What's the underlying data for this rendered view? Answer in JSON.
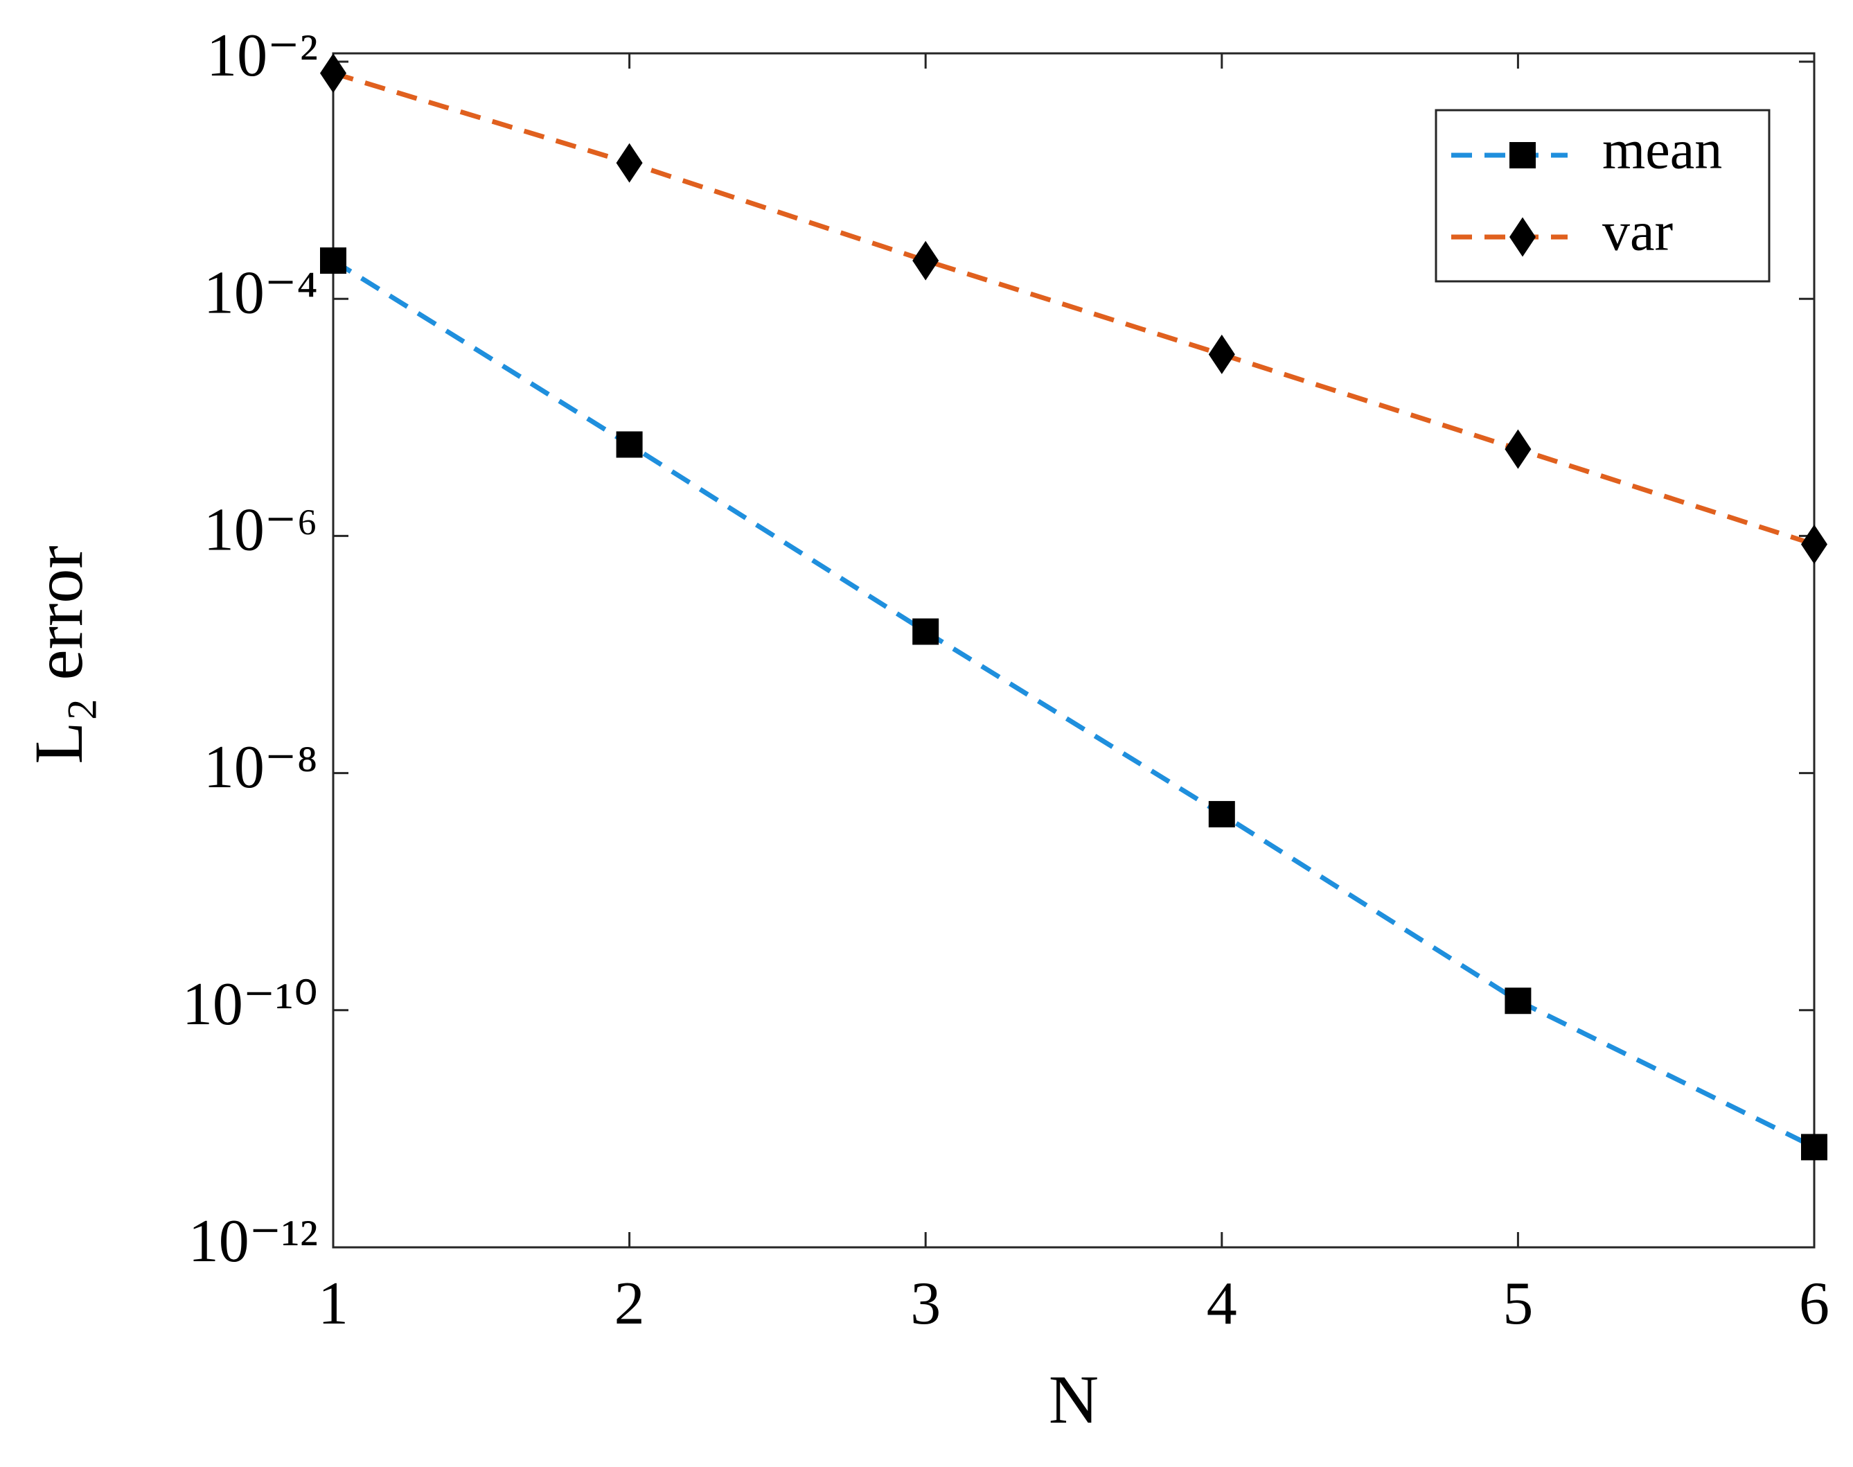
{
  "chart_data": {
    "type": "line",
    "x_label": "N",
    "y_label": "L₂ error",
    "x": [
      1,
      2,
      3,
      4,
      5,
      6
    ],
    "series": [
      {
        "name": "mean",
        "color": "#1F8FDD",
        "marker": "square",
        "values": [
          0.00021,
          5.9e-06,
          1.56e-07,
          4.5e-09,
          1.2e-10,
          7e-12
        ]
      },
      {
        "name": "var",
        "color": "#E0601E",
        "marker": "diamond",
        "values": [
          0.008,
          0.0014,
          0.00021,
          3.4e-05,
          5.4e-06,
          8.5e-07
        ]
      }
    ],
    "xlim": [
      1,
      6
    ],
    "xticks": [
      1,
      2,
      3,
      4,
      5,
      6
    ],
    "ylim": [
      1e-12,
      0.01
    ],
    "yticks": [
      {
        "value": 1e-12,
        "label": "10⁻¹²"
      },
      {
        "value": 1e-10,
        "label": "10⁻¹⁰"
      },
      {
        "value": 1e-08,
        "label": "10⁻⁸"
      },
      {
        "value": 1e-06,
        "label": "10⁻⁶"
      },
      {
        "value": 0.0001,
        "label": "10⁻⁴"
      },
      {
        "value": 0.01,
        "label": "10⁻²"
      }
    ],
    "y_scale": "log",
    "grid": false,
    "legend_position": "northeast"
  }
}
